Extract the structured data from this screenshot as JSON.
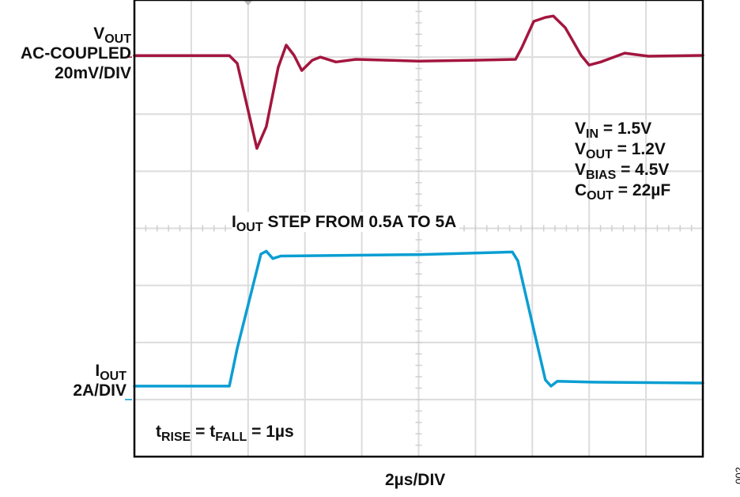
{
  "chart_data": {
    "type": "line",
    "title": "",
    "xlabel": "2µs/DIV",
    "x_units": "µs",
    "xlim": [
      0,
      20
    ],
    "grid": true,
    "grid_divisions": {
      "horizontal": 10,
      "vertical": 8
    },
    "series": [
      {
        "name": "VOUT",
        "color": "#a3163f",
        "channel_label": {
          "main": "V",
          "sub": "OUT",
          "line2": "AC-COUPLED",
          "line3": "20mV/DIV"
        },
        "units": "mV",
        "x": [
          0,
          3.34,
          3.62,
          4.31,
          4.64,
          5.06,
          5.34,
          5.62,
          5.89,
          6.26,
          6.54,
          7.09,
          7.79,
          10.0,
          11.96,
          13.41,
          13.63,
          14.05,
          14.46,
          14.74,
          15.16,
          15.72,
          16.0,
          16.41,
          17.25,
          18.08,
          20.0
        ],
        "y": [
          0.5,
          0.5,
          -2.2,
          -32,
          -24.4,
          -3.6,
          4.2,
          0.6,
          -4.7,
          -1.1,
          0,
          -1.7,
          -0.8,
          -1.4,
          -1.1,
          -0.8,
          3.3,
          12.5,
          13.9,
          14.4,
          10.3,
          0.6,
          -2.8,
          -1.7,
          1.4,
          0.3,
          0.6
        ]
      },
      {
        "name": "IOUT",
        "color": "#0a9ed2",
        "channel_label": {
          "main": "I",
          "sub": "OUT",
          "line2": "2A/DIV"
        },
        "units": "A",
        "x": [
          0,
          3.34,
          3.62,
          4.45,
          4.64,
          4.87,
          5.15,
          10.0,
          13.3,
          13.49,
          14.46,
          14.66,
          14.88,
          16.13,
          20.0
        ],
        "y": [
          0.47,
          0.47,
          1.8,
          5.1,
          5.2,
          4.94,
          5.03,
          5.08,
          5.17,
          4.86,
          0.69,
          0.47,
          0.64,
          0.61,
          0.58
        ]
      }
    ],
    "annotations": {
      "conditions": [
        {
          "main": "V",
          "sub": "IN",
          "rest": " = 1.5V"
        },
        {
          "main": "V",
          "sub": "OUT",
          "rest": " = 1.2V"
        },
        {
          "main": "V",
          "sub": "BIAS",
          "rest": " = 4.5V"
        },
        {
          "main": "C",
          "sub": "OUT",
          "rest": " = 22µF"
        }
      ],
      "step": {
        "main": "I",
        "sub": "OUT",
        "rest": " STEP FROM 0.5A TO 5A"
      },
      "timing": {
        "t1": "t",
        "sub1": "RISE",
        "mid": " = t",
        "sub2": "FALL",
        "rest": " = 1µs"
      }
    },
    "figure_number": "002"
  }
}
